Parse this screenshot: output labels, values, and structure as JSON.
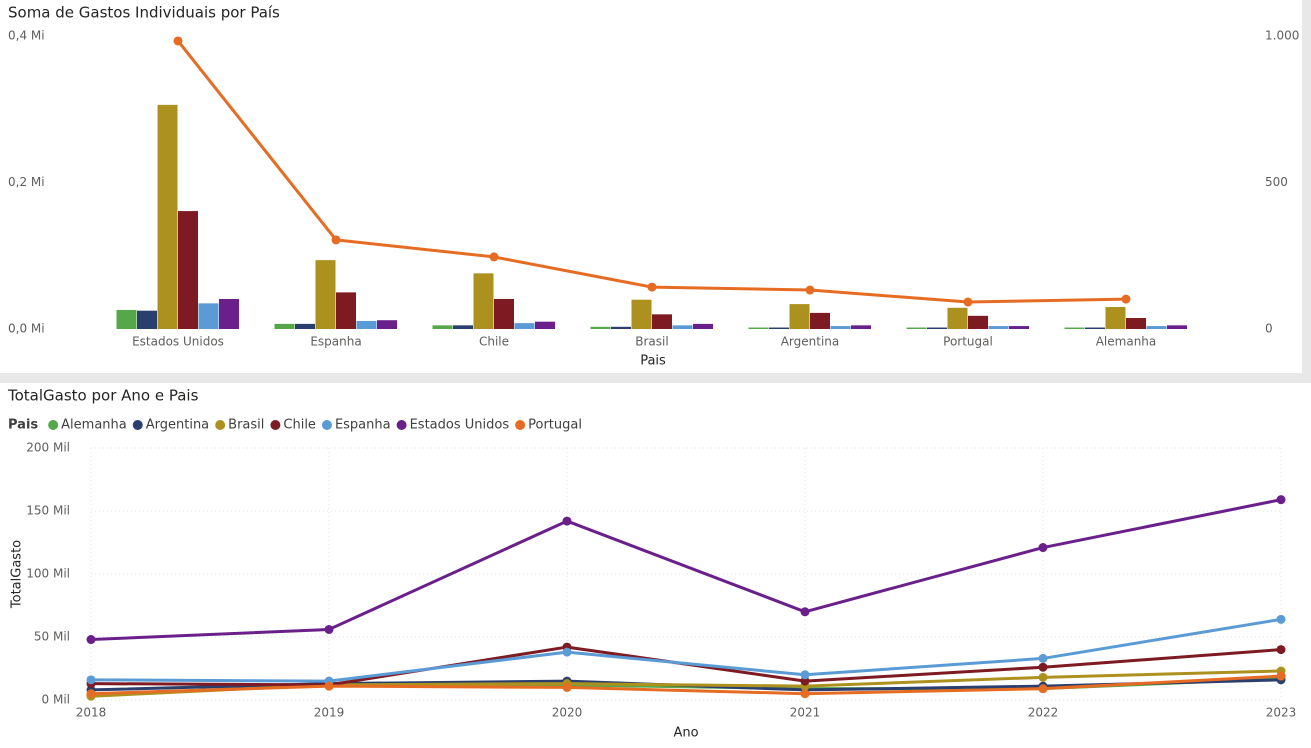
{
  "chart_data": [
    {
      "type": "combo",
      "title": "Soma de Gastos Individuais por País",
      "x_label": "Pais",
      "categories": [
        "Estados Unidos",
        "Espanha",
        "Chile",
        "Brasil",
        "Argentina",
        "Portugal",
        "Alemanha"
      ],
      "series": [
        {
          "type": "bar",
          "color": "#55a84a",
          "values": [
            0.026,
            0.007,
            0.005,
            0.003,
            0.002,
            0.002,
            0.002
          ]
        },
        {
          "type": "bar",
          "color": "#2b3f6e",
          "values": [
            0.025,
            0.007,
            0.005,
            0.003,
            0.002,
            0.002,
            0.002
          ]
        },
        {
          "type": "bar",
          "color": "#ad911f",
          "values": [
            0.306,
            0.094,
            0.076,
            0.04,
            0.034,
            0.029,
            0.03
          ]
        },
        {
          "type": "bar",
          "color": "#7d1a22",
          "values": [
            0.161,
            0.05,
            0.041,
            0.02,
            0.022,
            0.018,
            0.015
          ]
        },
        {
          "type": "bar",
          "color": "#5b9bd5",
          "values": [
            0.035,
            0.011,
            0.008,
            0.005,
            0.004,
            0.004,
            0.004
          ]
        },
        {
          "type": "bar",
          "color": "#6b1f8a",
          "values": [
            0.041,
            0.012,
            0.01,
            0.007,
            0.005,
            0.004,
            0.005
          ]
        },
        {
          "type": "line",
          "axis": "y2",
          "color": "#e66c23",
          "values": [
            983,
            304,
            246,
            143,
            133,
            92,
            102
          ]
        }
      ],
      "ylim": [
        0,
        0.4
      ],
      "yticks": [
        {
          "value": 0,
          "label": "0,0 Mi"
        },
        {
          "value": 0.2,
          "label": "0,2 Mi"
        },
        {
          "value": 0.4,
          "label": "0,4 Mi"
        }
      ],
      "y2lim": [
        0,
        1000
      ],
      "y2ticks": [
        0,
        500,
        {
          "value": 1000,
          "label": "1.000"
        }
      ],
      "grid": false
    },
    {
      "type": "line",
      "title": "TotalGasto por Ano e Pais",
      "x_label": "Ano",
      "y_label": "TotalGasto",
      "legend_title": "Pais",
      "categories": [
        "2018",
        "2019",
        "2020",
        "2021",
        "2022",
        "2023"
      ],
      "series": [
        {
          "name": "Alemanha",
          "color": "#55a84a",
          "values": [
            4,
            12,
            12,
            9,
            9,
            17
          ]
        },
        {
          "name": "Argentina",
          "color": "#2b3f6e",
          "values": [
            8,
            13,
            15,
            8,
            11,
            16
          ]
        },
        {
          "name": "Brasil",
          "color": "#ad911f",
          "values": [
            3,
            12,
            13,
            11,
            18,
            23
          ]
        },
        {
          "name": "Chile",
          "color": "#7d1a22",
          "values": [
            13,
            12,
            42,
            15,
            26,
            40
          ]
        },
        {
          "name": "Espanha",
          "color": "#5b9bd5",
          "values": [
            16,
            15,
            38,
            20,
            33,
            64
          ]
        },
        {
          "name": "Estados Unidos",
          "color": "#6b1f8a",
          "values": [
            48,
            56,
            142,
            70,
            121,
            159
          ]
        },
        {
          "name": "Portugal",
          "color": "#e66c23",
          "values": [
            5,
            11,
            10,
            5,
            9,
            19
          ]
        }
      ],
      "ylim": [
        0,
        200
      ],
      "yticks": [
        {
          "value": 0,
          "label": "0 Mil"
        },
        {
          "value": 50,
          "label": "50 Mil"
        },
        {
          "value": 100,
          "label": "100 Mil"
        },
        {
          "value": 150,
          "label": "150 Mil"
        },
        {
          "value": 200,
          "label": "200 Mil"
        }
      ],
      "grid": true
    }
  ]
}
